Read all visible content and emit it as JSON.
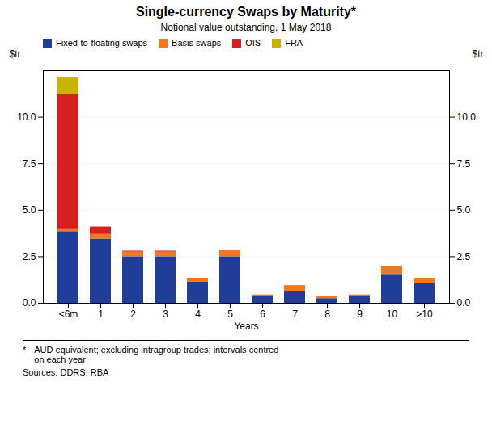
{
  "chart_data": {
    "type": "bar",
    "stacked": true,
    "title": "Single-currency Swaps by Maturity*",
    "subtitle": "Notional value outstanding, 1 May 2018",
    "xlabel": "Years",
    "ylabel": "$tr",
    "y2label": "$tr",
    "categories": [
      "<6m",
      "1",
      "2",
      "3",
      "4",
      "5",
      "6",
      "7",
      "8",
      "9",
      "10",
      ">10"
    ],
    "series": [
      {
        "name": "Fixed-to-floating swaps",
        "color": "#1f3d99",
        "values": [
          3.85,
          3.45,
          2.5,
          2.5,
          1.15,
          2.5,
          0.35,
          0.65,
          0.25,
          0.35,
          1.55,
          1.05
        ]
      },
      {
        "name": "Basis swaps",
        "color": "#f07820",
        "values": [
          0.15,
          0.25,
          0.25,
          0.25,
          0.2,
          0.35,
          0.1,
          0.3,
          0.1,
          0.1,
          0.45,
          0.3
        ]
      },
      {
        "name": "OIS",
        "color": "#d62020",
        "values": [
          7.2,
          0.4,
          0.05,
          0.05,
          0.0,
          0.0,
          0.0,
          0.0,
          0.0,
          0.0,
          0.0,
          0.0
        ]
      },
      {
        "name": "FRA",
        "color": "#c8b400",
        "values": [
          0.95,
          0.0,
          0.0,
          0.0,
          0.0,
          0.0,
          0.0,
          0.0,
          0.0,
          0.0,
          0.0,
          0.0
        ]
      }
    ],
    "ylim": [
      0,
      12.5
    ],
    "yticks": [
      {
        "value": 0,
        "label": "0.0"
      },
      2.5,
      {
        "value": 5,
        "label": "5.0"
      },
      7.5,
      {
        "value": 10,
        "label": "10.0"
      }
    ],
    "y2lim": [
      0,
      12.5
    ],
    "y2ticks": [
      {
        "value": 0,
        "label": "0.0"
      },
      2.5,
      {
        "value": 5,
        "label": "5.0"
      },
      7.5,
      {
        "value": 10,
        "label": "10.0"
      }
    ],
    "grid": true,
    "legend": "upper left",
    "annotations": [
      "*",
      "AUD equivalent; excluding intragroup trades; intervals centred\non each year",
      "Sources:  DDRS; RBA"
    ]
  }
}
